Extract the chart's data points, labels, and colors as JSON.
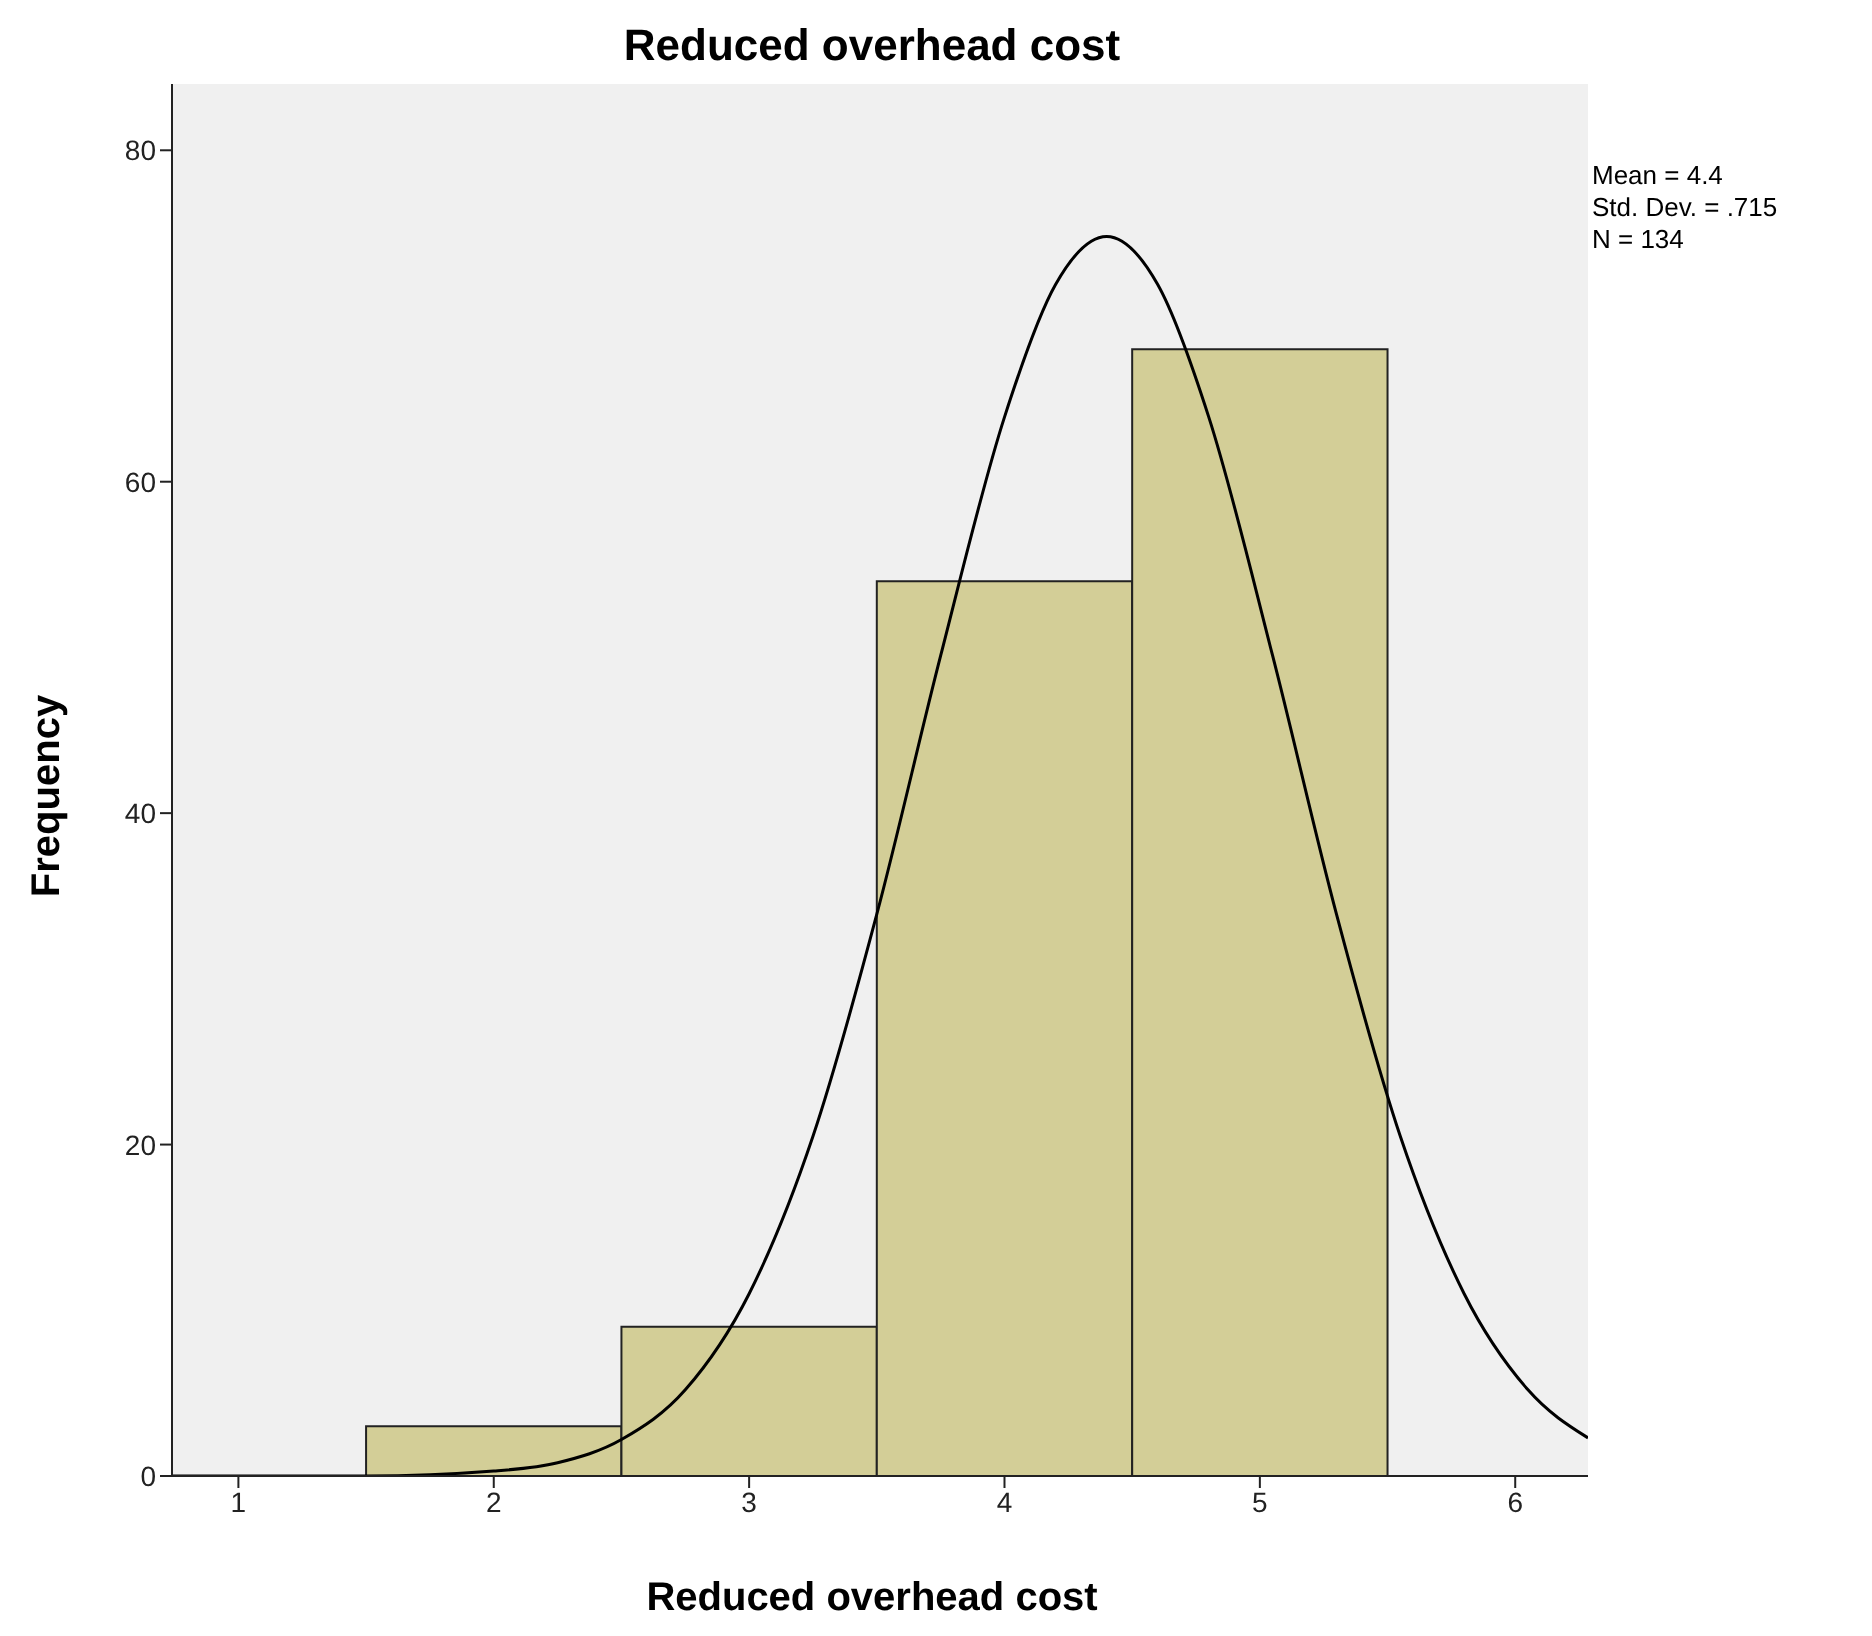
{
  "chart_data": {
    "type": "histogram",
    "title": "Reduced overhead cost",
    "xlabel": "Reduced overhead cost",
    "ylabel": "Frequency",
    "annotations": [
      "Mean = 4.4",
      "Std. Dev. = .715",
      "N = 134"
    ],
    "bins": [
      1.5,
      2.5,
      3.5,
      4.5,
      5.5
    ],
    "values": [
      3,
      9,
      54,
      68
    ],
    "color": "#d3ce97",
    "series": [
      {
        "type": "line",
        "color": "#000000",
        "x": [
          0.74,
          1.5,
          2,
          2.25,
          2.5,
          2.75,
          3,
          3.25,
          3.5,
          3.75,
          4,
          4.2,
          4.4,
          4.6,
          4.8,
          5.05,
          5.3,
          5.55,
          5.8,
          6.05,
          6.285
        ],
        "values": [
          0,
          0,
          0.3,
          0.8,
          2.2,
          5.2,
          11,
          20.5,
          33.9,
          49.5,
          63.9,
          71.9,
          74.8,
          71.9,
          63.9,
          49.5,
          33.9,
          20.5,
          11,
          5.2,
          2.3
        ]
      }
    ],
    "xlim": [
      0.74,
      6.285
    ],
    "xticks": [
      1,
      2,
      3,
      4,
      5,
      6
    ],
    "ylim": [
      0,
      84
    ],
    "yticks": [
      0,
      20,
      40,
      60,
      80
    ]
  }
}
